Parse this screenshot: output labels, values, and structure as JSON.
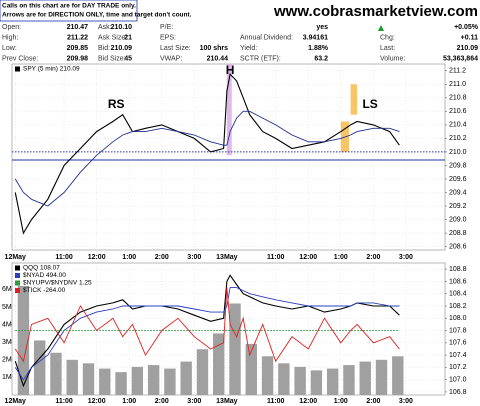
{
  "header": {
    "notice": [
      "Calls on this chart are for DAY TRADE only.",
      "Arrows are for DIRECTION ONLY, time and target don't count."
    ],
    "site": "www.cobrasmarketview.com",
    "quote": [
      [
        {
          "label": "Open:",
          "value": "210.47"
        },
        {
          "label": "Ask:",
          "value": "210.10"
        },
        {
          "label": "P/E:"
        },
        {
          "value": "yes"
        }
      ],
      [
        {
          "label": "High:",
          "value": "211.22"
        },
        {
          "label": "Ask Size:",
          "value": "21"
        },
        {
          "label": "EPS:"
        },
        {
          "label": "Annual Dividend:",
          "value": "3.94161"
        }
      ],
      [
        {
          "label": "Low:",
          "value": "209.85"
        },
        {
          "label": "Bid:",
          "value": "210.09"
        },
        {
          "label": "Last Size:",
          "value": "100 shrs"
        },
        {
          "label": "Yield:",
          "value": "1.88%"
        }
      ],
      [
        {
          "label": "Prev Close:",
          "value": "209.98"
        },
        {
          "label": "Bid Size:",
          "value": "45"
        },
        {
          "label": "VWAP:",
          "value": "210.44"
        },
        {
          "label": "SCTR (ETF):",
          "value": "63.2"
        }
      ]
    ],
    "change_pct": "+0.05%",
    "summary": [
      {
        "label": "Chg:",
        "value": "+0.11"
      },
      {
        "label": "Last:",
        "value": "210.09"
      },
      {
        "label": "Volume:",
        "value": "53,363,864"
      }
    ]
  },
  "chart_data": [
    {
      "type": "line",
      "y_axis_side": "right",
      "grid": true,
      "xlim": [
        -0.1,
        13.2
      ],
      "xticks": [
        {
          "value": 0,
          "label": "12May"
        },
        {
          "value": 1.5,
          "label": "11:00"
        },
        {
          "value": 2.5,
          "label": "12:00"
        },
        {
          "value": 3.5,
          "label": "1:00"
        },
        {
          "value": 4.5,
          "label": "2:00"
        },
        {
          "value": 5.5,
          "label": "3:00"
        },
        {
          "value": 6.5,
          "label": "13May"
        },
        {
          "value": 8,
          "label": "11:00"
        },
        {
          "value": 9,
          "label": "12:00"
        },
        {
          "value": 10,
          "label": "1:00"
        },
        {
          "value": 11,
          "label": "2:00"
        },
        {
          "value": 12,
          "label": "3:00"
        }
      ],
      "ylim": [
        208.55,
        211.3
      ],
      "yticks": [
        208.6,
        208.8,
        {
          "value": 209,
          "label": "209.0"
        },
        209.2,
        209.4,
        209.6,
        209.8,
        {
          "value": 210,
          "label": "210.0"
        },
        210.2,
        210.4,
        210.6,
        210.8,
        {
          "value": 211,
          "label": "211.0"
        },
        211.2
      ],
      "x": [
        0,
        0.25,
        0.5,
        1,
        1.5,
        2,
        2.5,
        3,
        3.3,
        3.6,
        4,
        4.5,
        5,
        5.5,
        6,
        6.4,
        6.5,
        6.6,
        6.8,
        7,
        7.2,
        7.6,
        8,
        8.5,
        9,
        9.5,
        10,
        10.3,
        10.5,
        11,
        11.5,
        11.8
      ],
      "series": [
        {
          "name": "SPY (5 min) 210.09",
          "color": "#000000",
          "values": [
            209.4,
            208.8,
            209.0,
            209.3,
            209.8,
            210.05,
            210.3,
            210.45,
            210.55,
            210.3,
            210.35,
            210.4,
            210.3,
            210.2,
            210.0,
            210.05,
            210.9,
            211.15,
            211.05,
            210.8,
            210.55,
            210.3,
            210.2,
            210.05,
            210.1,
            210.15,
            210.3,
            210.4,
            210.45,
            210.4,
            210.3,
            210.1
          ]
        },
        {
          "color": "#1f2f8f",
          "values": [
            209.6,
            209.4,
            209.3,
            209.2,
            209.4,
            209.7,
            209.95,
            210.15,
            210.25,
            210.3,
            210.3,
            210.35,
            210.3,
            210.25,
            210.15,
            210.1,
            210.1,
            210.3,
            210.5,
            210.6,
            210.6,
            210.5,
            210.4,
            210.25,
            210.15,
            210.15,
            210.2,
            210.25,
            210.3,
            210.35,
            210.35,
            210.3
          ]
        }
      ],
      "hlines": [
        {
          "y": 209.88,
          "color": "#2233aa",
          "style": "solid"
        },
        {
          "y": 210.0,
          "color": "#2233aa",
          "style": "dotted"
        }
      ],
      "highlights": [
        {
          "x": [
            6.5,
            6.65
          ],
          "y": [
            209.95,
            211.3
          ],
          "color": "#d9a6e6"
        },
        {
          "x": [
            10.0,
            10.25
          ],
          "y": [
            210.0,
            210.45
          ],
          "color": "#f5b642"
        },
        {
          "x": [
            10.3,
            10.5
          ],
          "y": [
            210.55,
            211.0
          ],
          "color": "#f5b642"
        }
      ],
      "annotations": [
        {
          "text": "H",
          "x": 6.6,
          "y": 211.2,
          "color": "#1f2fb0"
        },
        {
          "text": "RS",
          "x": 3.1,
          "y": 210.7,
          "color": "#1f2fb0"
        },
        {
          "text": "LS",
          "x": 10.9,
          "y": 210.7,
          "color": "#1f2fb0"
        }
      ]
    },
    {
      "type": "combo",
      "y_axis_side": "left",
      "grid": true,
      "xlim": [
        -0.1,
        13.2
      ],
      "xticks": [
        {
          "value": 0,
          "label": "12May"
        },
        {
          "value": 1.5,
          "label": "11:00"
        },
        {
          "value": 2.5,
          "label": "12:00"
        },
        {
          "value": 3.5,
          "label": "1:00"
        },
        {
          "value": 4.5,
          "label": "2:00"
        },
        {
          "value": 5.5,
          "label": "3:00"
        },
        {
          "value": 6.5,
          "label": "13May"
        },
        {
          "value": 8,
          "label": "11:00"
        },
        {
          "value": 9,
          "label": "12:00"
        },
        {
          "value": 10,
          "label": "1:00"
        },
        {
          "value": 11,
          "label": "2:00"
        },
        {
          "value": 12,
          "label": "3:00"
        }
      ],
      "ylim": [
        0,
        7500000
      ],
      "yticks": [
        {
          "value": 1000000,
          "label": "1M"
        },
        {
          "value": 2000000,
          "label": "2M"
        },
        {
          "value": 3000000,
          "label": "3M"
        },
        {
          "value": 4000000,
          "label": "4M"
        },
        {
          "value": 5000000,
          "label": "5M"
        },
        {
          "value": 6000000,
          "label": "6M"
        }
      ],
      "y2lim": [
        106.75,
        108.9
      ],
      "y2ticks": [
        106.8,
        {
          "value": 107,
          "label": "107.0"
        },
        107.2,
        107.4,
        107.6,
        107.8,
        {
          "value": 108,
          "label": "108.0"
        },
        108.2,
        108.4,
        108.6,
        108.8
      ],
      "bars": {
        "color": "#a0a0a0",
        "x": [
          0.25,
          0.75,
          1.25,
          1.75,
          2.25,
          2.75,
          3.25,
          3.75,
          4.25,
          4.75,
          5.25,
          5.75,
          6.25,
          6.75,
          7.25,
          7.75,
          8.25,
          8.75,
          9.25,
          9.75,
          10.25,
          10.75,
          11.25,
          11.75
        ],
        "values": [
          6200000,
          3100000,
          2400000,
          2000000,
          1800000,
          1500000,
          1300000,
          1600000,
          1700000,
          1500000,
          1900000,
          2600000,
          3500000,
          5200000,
          2900000,
          2200000,
          1800000,
          1600000,
          1400000,
          1500000,
          1700000,
          1900000,
          2000000,
          2200000
        ]
      },
      "x": [
        0,
        0.25,
        0.5,
        1,
        1.5,
        2,
        2.5,
        3,
        3.3,
        3.6,
        4,
        4.5,
        5,
        5.5,
        6,
        6.4,
        6.5,
        6.6,
        6.8,
        7,
        7.2,
        7.6,
        8,
        8.5,
        9,
        9.5,
        10,
        10.3,
        10.5,
        11,
        11.5,
        11.8
      ],
      "series": [
        {
          "name": "QQQ 108.07",
          "color": "#000000",
          "axis": "y2",
          "values": [
            107.3,
            106.9,
            107.2,
            107.5,
            107.9,
            108.1,
            108.2,
            108.25,
            108.3,
            108.15,
            108.2,
            108.2,
            108.15,
            108.05,
            107.95,
            108.0,
            108.6,
            108.7,
            108.55,
            108.4,
            108.35,
            108.25,
            108.2,
            108.15,
            108.2,
            108.1,
            108.15,
            108.2,
            108.25,
            108.2,
            108.2,
            108.05
          ]
        },
        {
          "name": "$NYAD 494.00",
          "color": "#2a3fbf",
          "axis": "y2",
          "values": [
            107.2,
            107.0,
            107.2,
            107.4,
            107.8,
            108.0,
            108.1,
            108.15,
            108.2,
            108.2,
            108.2,
            108.2,
            108.2,
            108.15,
            108.1,
            108.1,
            108.2,
            108.5,
            108.5,
            108.45,
            108.4,
            108.35,
            108.3,
            108.25,
            108.2,
            108.2,
            108.2,
            108.2,
            108.25,
            108.25,
            108.2,
            108.2
          ]
        },
        {
          "name": "$NYUPV/$NYDNV 1.25",
          "color": "#2e9a3a",
          "axis": "y2",
          "style": "dotted",
          "values": [
            107.8,
            107.8,
            107.8,
            107.8,
            107.8,
            107.8,
            107.8,
            107.8,
            107.8,
            107.8,
            107.8,
            107.8,
            107.8,
            107.8,
            107.8,
            107.8,
            107.8,
            107.8,
            107.8,
            107.8,
            107.8,
            107.8,
            107.8,
            107.8,
            107.8,
            107.8,
            107.8,
            107.8,
            107.8,
            107.8,
            107.8,
            107.8
          ]
        },
        {
          "name": "$TICK -264.00",
          "color": "#e02020",
          "axis": "y2",
          "values": [
            107.5,
            107.3,
            107.9,
            108.0,
            107.6,
            108.2,
            107.8,
            108.0,
            107.7,
            107.9,
            107.4,
            107.8,
            108.0,
            107.7,
            107.5,
            107.6,
            108.5,
            107.9,
            107.7,
            108.0,
            107.4,
            107.9,
            107.3,
            107.7,
            107.5,
            108.0,
            107.6,
            107.8,
            107.9,
            107.6,
            107.7,
            107.5
          ]
        }
      ]
    }
  ]
}
